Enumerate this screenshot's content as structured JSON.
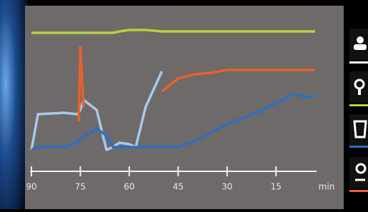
{
  "chart_data": {
    "type": "line",
    "x": [
      90,
      88,
      80,
      76,
      75.5,
      75,
      74,
      70,
      67,
      65,
      63,
      60,
      58,
      55,
      50,
      45,
      40,
      35,
      30,
      20,
      12,
      10,
      5,
      3
    ],
    "series": [
      {
        "color": "#b5d23c",
        "values": [
          92,
          92,
          92,
          92,
          92,
          92,
          92,
          92,
          92,
          92,
          93,
          94,
          94,
          94,
          93,
          93,
          93,
          93,
          93,
          93,
          93,
          93,
          93,
          93
        ]
      },
      {
        "color": "#a9c8ec",
        "values": [
          10,
          35,
          36,
          35,
          36,
          38,
          45,
          38,
          10,
          12,
          15,
          14,
          12,
          40,
          65,
          null,
          null,
          null,
          null,
          null,
          null,
          null,
          null,
          null
        ]
      },
      {
        "color": "#e8602c",
        "values": [
          null,
          null,
          null,
          null,
          30,
          82,
          40,
          null,
          null,
          null,
          null,
          null,
          null,
          null,
          51,
          60,
          63,
          64,
          66,
          66,
          66,
          66,
          66,
          66
        ]
      },
      {
        "color": "#2f6fc0",
        "values": [
          10,
          12,
          12,
          15,
          17,
          18,
          19,
          25,
          20,
          12,
          12,
          12,
          12,
          12,
          12,
          12,
          16,
          22,
          28,
          37,
          46,
          49,
          47,
          48
        ]
      }
    ],
    "xlim": [
      90,
      3
    ],
    "xticks": [
      90,
      75,
      60,
      45,
      30,
      15
    ],
    "x_label": "min",
    "ylim": [
      0,
      100
    ]
  }
}
